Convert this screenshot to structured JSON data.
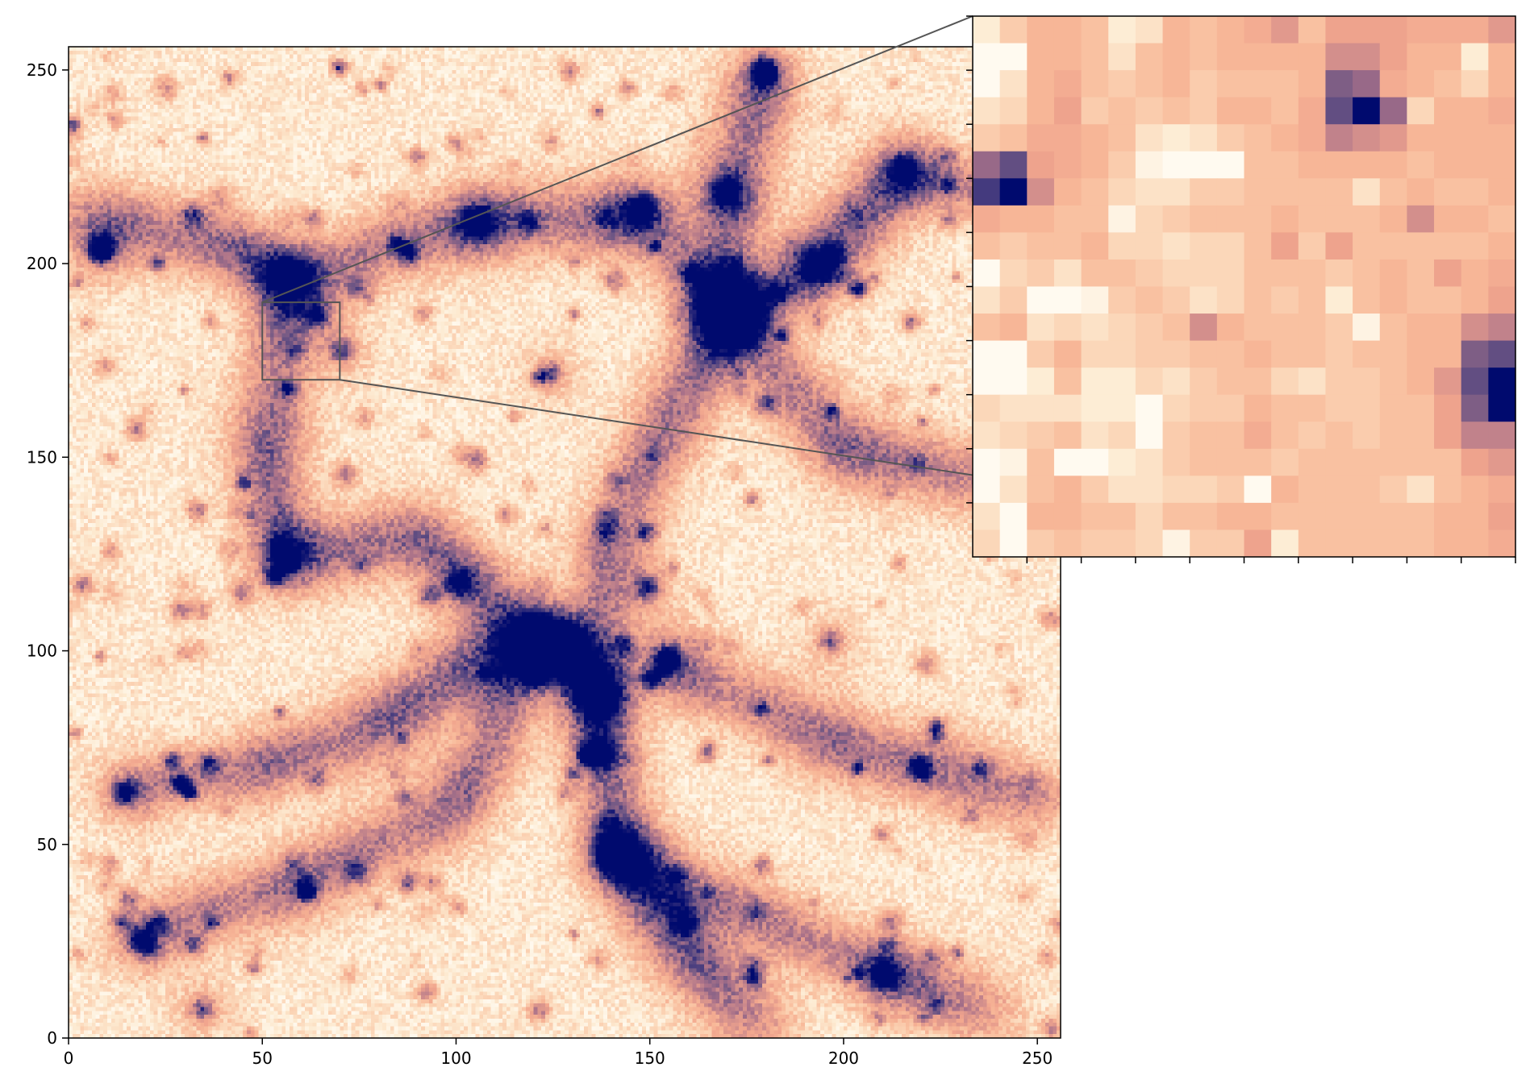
{
  "colors": {
    "background": "#ffffff",
    "axis": "#000000",
    "zoom_box": "#555555",
    "colormap": [
      "#fffaf0",
      "#fdebd2",
      "#fbd2b3",
      "#f8b999",
      "#f0a48d",
      "#d18e8c",
      "#a97189",
      "#6f5784",
      "#2d2a7a",
      "#000a6e"
    ]
  },
  "chart_data": [
    {
      "type": "heatmap",
      "name": "main-panel",
      "title": "",
      "xlabel": "",
      "ylabel": "",
      "xlim": [
        0,
        256
      ],
      "ylim": [
        0,
        256
      ],
      "x_ticks": [
        0,
        50,
        100,
        150,
        200,
        250
      ],
      "y_ticks": [
        0,
        50,
        100,
        150,
        200,
        250
      ],
      "x_tick_labels": [
        "0",
        "50",
        "100",
        "150",
        "200",
        "250"
      ],
      "y_tick_labels": [
        "0",
        "50",
        "100",
        "150",
        "200",
        "250"
      ],
      "grid": false,
      "colormap": "cream-salmon-purple-navy",
      "grid_size": [
        256,
        256
      ],
      "bright_halos": [
        {
          "x": 179,
          "y": 249,
          "strength": 1.0
        },
        {
          "x": 8,
          "y": 203,
          "strength": 0.9
        },
        {
          "x": 57,
          "y": 196,
          "strength": 0.8
        },
        {
          "x": 105,
          "y": 210,
          "strength": 0.75
        },
        {
          "x": 147,
          "y": 213,
          "strength": 0.65
        },
        {
          "x": 169,
          "y": 218,
          "strength": 0.6
        },
        {
          "x": 193,
          "y": 199,
          "strength": 0.75
        },
        {
          "x": 170,
          "y": 186,
          "strength": 0.95
        },
        {
          "x": 215,
          "y": 224,
          "strength": 0.6
        },
        {
          "x": 124,
          "y": 171,
          "strength": 0.55
        },
        {
          "x": 56,
          "y": 123,
          "strength": 0.6
        },
        {
          "x": 100,
          "y": 117,
          "strength": 0.6
        },
        {
          "x": 149,
          "y": 116,
          "strength": 0.65
        },
        {
          "x": 122,
          "y": 103,
          "strength": 0.8
        },
        {
          "x": 129,
          "y": 102,
          "strength": 0.7
        },
        {
          "x": 154,
          "y": 97,
          "strength": 0.9
        },
        {
          "x": 137,
          "y": 87,
          "strength": 0.9
        },
        {
          "x": 135,
          "y": 73,
          "strength": 0.7
        },
        {
          "x": 141,
          "y": 47,
          "strength": 0.85
        },
        {
          "x": 14,
          "y": 63,
          "strength": 0.65
        },
        {
          "x": 18,
          "y": 25,
          "strength": 0.7
        },
        {
          "x": 34,
          "y": 7,
          "strength": 0.55
        },
        {
          "x": 210,
          "y": 16,
          "strength": 0.6
        },
        {
          "x": 196,
          "y": 102,
          "strength": 0.5
        },
        {
          "x": 70,
          "y": 177,
          "strength": 0.55
        },
        {
          "x": 64,
          "y": 186,
          "strength": 0.45
        }
      ],
      "filaments": [
        [
          [
            0,
            212
          ],
          [
            40,
            205
          ],
          [
            57,
            196
          ],
          [
            105,
            210
          ],
          [
            147,
            213
          ],
          [
            170,
            186
          ]
        ],
        [
          [
            179,
            249
          ],
          [
            170,
            218
          ],
          [
            170,
            186
          ],
          [
            193,
            199
          ],
          [
            215,
            224
          ],
          [
            256,
            212
          ]
        ],
        [
          [
            170,
            186
          ],
          [
            150,
            150
          ],
          [
            137,
            120
          ],
          [
            137,
            87
          ],
          [
            141,
            47
          ],
          [
            160,
            20
          ],
          [
            180,
            0
          ]
        ],
        [
          [
            122,
            103
          ],
          [
            100,
            95
          ],
          [
            80,
            80
          ],
          [
            50,
            70
          ],
          [
            14,
            63
          ]
        ],
        [
          [
            154,
            97
          ],
          [
            200,
            75
          ],
          [
            256,
            60
          ]
        ],
        [
          [
            137,
            87
          ],
          [
            90,
            130
          ],
          [
            56,
            123
          ]
        ],
        [
          [
            141,
            47
          ],
          [
            210,
            16
          ],
          [
            240,
            5
          ]
        ],
        [
          [
            18,
            25
          ],
          [
            60,
            40
          ],
          [
            100,
            60
          ],
          [
            122,
            103
          ]
        ],
        [
          [
            57,
            196
          ],
          [
            50,
            150
          ],
          [
            56,
            123
          ]
        ],
        [
          [
            170,
            186
          ],
          [
            200,
            150
          ],
          [
            256,
            140
          ]
        ]
      ]
    },
    {
      "type": "heatmap",
      "name": "zoom-inset",
      "title": "",
      "xlabel": "",
      "ylabel": "",
      "xlim": [
        50,
        70
      ],
      "ylim": [
        170,
        190
      ],
      "x_ticks": [
        52,
        54,
        56,
        58,
        60,
        62,
        64,
        66,
        68,
        70
      ],
      "y_ticks": [
        172,
        174,
        176,
        178,
        180,
        182,
        184,
        186,
        188,
        190
      ],
      "tick_labels_shown": false,
      "grid": false,
      "grid_size": [
        20,
        20
      ],
      "values_top_to_bottom": [
        [
          0.1,
          0.25,
          0.35,
          0.35,
          0.3,
          0.1,
          0.15,
          0.35,
          0.3,
          0.35,
          0.4,
          0.5,
          0.3,
          0.45,
          0.45,
          0.45,
          0.4,
          0.4,
          0.4,
          0.5
        ],
        [
          0.0,
          0.0,
          0.35,
          0.35,
          0.3,
          0.15,
          0.3,
          0.35,
          0.3,
          0.35,
          0.35,
          0.35,
          0.35,
          0.55,
          0.55,
          0.45,
          0.35,
          0.35,
          0.1,
          0.35
        ],
        [
          0.0,
          0.15,
          0.35,
          0.4,
          0.3,
          0.25,
          0.3,
          0.35,
          0.25,
          0.3,
          0.3,
          0.3,
          0.35,
          0.75,
          0.7,
          0.4,
          0.35,
          0.3,
          0.2,
          0.35
        ],
        [
          0.15,
          0.2,
          0.35,
          0.45,
          0.25,
          0.3,
          0.25,
          0.3,
          0.25,
          0.35,
          0.35,
          0.3,
          0.4,
          0.8,
          1.0,
          0.7,
          0.2,
          0.35,
          0.35,
          0.4
        ],
        [
          0.25,
          0.3,
          0.4,
          0.4,
          0.35,
          0.3,
          0.15,
          0.1,
          0.15,
          0.25,
          0.3,
          0.35,
          0.4,
          0.6,
          0.55,
          0.5,
          0.35,
          0.35,
          0.35,
          0.35
        ],
        [
          0.7,
          0.8,
          0.45,
          0.4,
          0.35,
          0.25,
          0.05,
          0.0,
          0.0,
          0.0,
          0.3,
          0.3,
          0.35,
          0.35,
          0.35,
          0.35,
          0.3,
          0.35,
          0.35,
          0.35
        ],
        [
          0.85,
          1.0,
          0.55,
          0.35,
          0.3,
          0.2,
          0.15,
          0.15,
          0.25,
          0.25,
          0.3,
          0.3,
          0.3,
          0.3,
          0.15,
          0.3,
          0.35,
          0.3,
          0.3,
          0.35
        ],
        [
          0.4,
          0.35,
          0.35,
          0.3,
          0.3,
          0.05,
          0.2,
          0.25,
          0.3,
          0.3,
          0.3,
          0.35,
          0.3,
          0.3,
          0.3,
          0.35,
          0.55,
          0.35,
          0.35,
          0.3
        ],
        [
          0.3,
          0.25,
          0.3,
          0.3,
          0.35,
          0.2,
          0.2,
          0.15,
          0.2,
          0.2,
          0.3,
          0.45,
          0.25,
          0.45,
          0.3,
          0.3,
          0.3,
          0.3,
          0.3,
          0.35
        ],
        [
          0.0,
          0.2,
          0.25,
          0.15,
          0.3,
          0.3,
          0.25,
          0.2,
          0.2,
          0.2,
          0.3,
          0.3,
          0.3,
          0.25,
          0.3,
          0.35,
          0.3,
          0.45,
          0.35,
          0.4
        ],
        [
          0.15,
          0.25,
          0.0,
          0.0,
          0.05,
          0.25,
          0.3,
          0.25,
          0.15,
          0.2,
          0.3,
          0.25,
          0.3,
          0.1,
          0.3,
          0.35,
          0.3,
          0.3,
          0.35,
          0.45
        ],
        [
          0.3,
          0.35,
          0.15,
          0.2,
          0.15,
          0.2,
          0.25,
          0.3,
          0.55,
          0.35,
          0.3,
          0.3,
          0.3,
          0.25,
          0.05,
          0.3,
          0.35,
          0.35,
          0.55,
          0.6
        ],
        [
          0.0,
          0.0,
          0.25,
          0.35,
          0.2,
          0.2,
          0.25,
          0.25,
          0.3,
          0.3,
          0.35,
          0.3,
          0.3,
          0.25,
          0.3,
          0.3,
          0.35,
          0.35,
          0.75,
          0.8
        ],
        [
          0.0,
          0.0,
          0.1,
          0.3,
          0.1,
          0.1,
          0.2,
          0.15,
          0.25,
          0.3,
          0.3,
          0.2,
          0.15,
          0.25,
          0.25,
          0.3,
          0.35,
          0.5,
          0.8,
          1.0
        ],
        [
          0.2,
          0.15,
          0.15,
          0.15,
          0.1,
          0.1,
          0.0,
          0.2,
          0.25,
          0.25,
          0.35,
          0.3,
          0.3,
          0.25,
          0.25,
          0.3,
          0.3,
          0.45,
          0.75,
          1.0
        ],
        [
          0.15,
          0.2,
          0.25,
          0.3,
          0.15,
          0.2,
          0.0,
          0.25,
          0.3,
          0.3,
          0.4,
          0.3,
          0.25,
          0.3,
          0.25,
          0.3,
          0.3,
          0.45,
          0.6,
          0.6
        ],
        [
          0.0,
          0.05,
          0.3,
          0.0,
          0.0,
          0.1,
          0.15,
          0.25,
          0.3,
          0.3,
          0.3,
          0.25,
          0.3,
          0.3,
          0.3,
          0.3,
          0.3,
          0.3,
          0.45,
          0.5
        ],
        [
          0.0,
          0.15,
          0.3,
          0.35,
          0.25,
          0.15,
          0.15,
          0.2,
          0.2,
          0.25,
          0.0,
          0.35,
          0.3,
          0.3,
          0.3,
          0.25,
          0.15,
          0.3,
          0.35,
          0.4
        ],
        [
          0.15,
          0.0,
          0.35,
          0.35,
          0.3,
          0.3,
          0.2,
          0.3,
          0.3,
          0.35,
          0.35,
          0.3,
          0.3,
          0.3,
          0.3,
          0.3,
          0.3,
          0.35,
          0.35,
          0.45
        ],
        [
          0.2,
          0.0,
          0.25,
          0.3,
          0.25,
          0.25,
          0.2,
          0.05,
          0.25,
          0.25,
          0.45,
          0.1,
          0.3,
          0.3,
          0.3,
          0.3,
          0.3,
          0.35,
          0.35,
          0.4
        ]
      ]
    }
  ]
}
